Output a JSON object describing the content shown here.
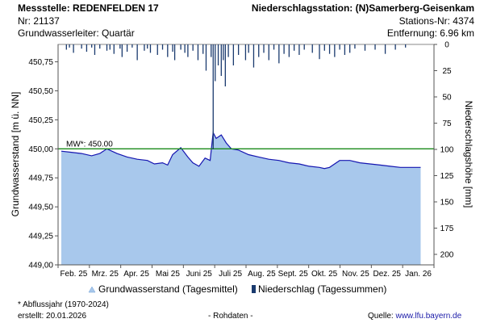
{
  "header": {
    "station_label": "Messstelle: REDENFELDEN 17",
    "station_nr": "Nr: 21137",
    "aquifer": "Grundwasserleiter: Quartär",
    "precip_station": "Niederschlagsstation: (N)Samerberg-Geisenkam",
    "precip_nr": "Stations-Nr: 4374",
    "distance": "Entfernung: 6.96 km"
  },
  "footer": {
    "abflussjahr": "* Abflussjahr (1970-2024)",
    "created": "erstellt:  20.01.2026",
    "rohdaten": "- Rohdaten -",
    "source_label": "Quelle:",
    "source_link": "www.lfu.bayern.de"
  },
  "chart_data": {
    "type": "area",
    "xlabels": [
      "Feb. 25",
      "Mrz. 25",
      "Apr. 25",
      "Mai 25",
      "Juni 25",
      "Juli 25",
      "Aug. 25",
      "Sept. 25",
      "Okt. 25",
      "Nov. 25",
      "Dez. 25",
      "Jan. 26"
    ],
    "ylabel": "Grundwasserstand [m ü. NN]",
    "ylabel_right": "Niederschlagshöhe [mm]",
    "yticks": [
      "449,00",
      "449,25",
      "449,50",
      "449,75",
      "450,00",
      "450,25",
      "450,50",
      "450,75"
    ],
    "ylim": [
      449.0,
      450.9
    ],
    "yticks_right": [
      "0",
      "25",
      "50",
      "75",
      "100",
      "125",
      "150",
      "175",
      "200"
    ],
    "ylim_right": [
      0,
      210
    ],
    "reference_line": {
      "label": "MW*: 450.00",
      "value": 450.0
    },
    "groundwater_series": {
      "name": "Grundwasserstand (Tagesmittel)",
      "x_days": [
        0,
        10,
        20,
        30,
        38,
        45,
        55,
        65,
        75,
        85,
        92,
        100,
        105,
        110,
        118,
        125,
        130,
        136,
        142,
        147,
        150,
        153,
        158,
        163,
        168,
        175,
        185,
        195,
        205,
        215,
        225,
        235,
        245,
        255,
        260,
        265,
        275,
        285,
        295,
        305,
        315,
        325,
        335,
        345,
        355
      ],
      "values": [
        449.98,
        449.97,
        449.96,
        449.94,
        449.96,
        450.0,
        449.96,
        449.93,
        449.91,
        449.9,
        449.87,
        449.88,
        449.86,
        449.95,
        450.01,
        449.93,
        449.88,
        449.85,
        449.92,
        449.9,
        450.14,
        450.09,
        450.12,
        450.05,
        450.0,
        449.99,
        449.95,
        449.93,
        449.91,
        449.9,
        449.88,
        449.87,
        449.85,
        449.84,
        449.83,
        449.84,
        449.9,
        449.9,
        449.88,
        449.87,
        449.86,
        449.85,
        449.84,
        449.84,
        449.84
      ],
      "color": "#1515b0",
      "fill": "#a8c8ec"
    },
    "precip_series": {
      "name": "Niederschlag (Tagessummen)",
      "x_days": [
        5,
        8,
        12,
        20,
        25,
        30,
        33,
        38,
        45,
        48,
        52,
        58,
        60,
        65,
        70,
        75,
        82,
        85,
        88,
        95,
        100,
        105,
        110,
        112,
        118,
        122,
        125,
        130,
        135,
        140,
        143,
        148,
        150,
        152,
        155,
        158,
        160,
        162,
        165,
        170,
        175,
        182,
        185,
        190,
        195,
        200,
        205,
        210,
        215,
        220,
        225,
        230,
        235,
        240,
        248,
        255,
        260,
        265,
        270,
        275,
        280,
        285,
        290,
        300,
        310,
        320,
        330,
        340
      ],
      "values": [
        5,
        3,
        8,
        4,
        7,
        3,
        10,
        4,
        6,
        5,
        9,
        4,
        12,
        7,
        3,
        15,
        6,
        4,
        8,
        10,
        5,
        12,
        7,
        15,
        5,
        8,
        12,
        6,
        15,
        9,
        25,
        12,
        100,
        35,
        20,
        30,
        15,
        40,
        12,
        20,
        10,
        15,
        8,
        22,
        12,
        8,
        15,
        5,
        18,
        9,
        12,
        6,
        10,
        5,
        8,
        14,
        6,
        9,
        12,
        5,
        10,
        8,
        4,
        6,
        5,
        9,
        5,
        3
      ],
      "color": "#1a3a6e"
    },
    "grid": false,
    "legend_position": "bottom"
  }
}
